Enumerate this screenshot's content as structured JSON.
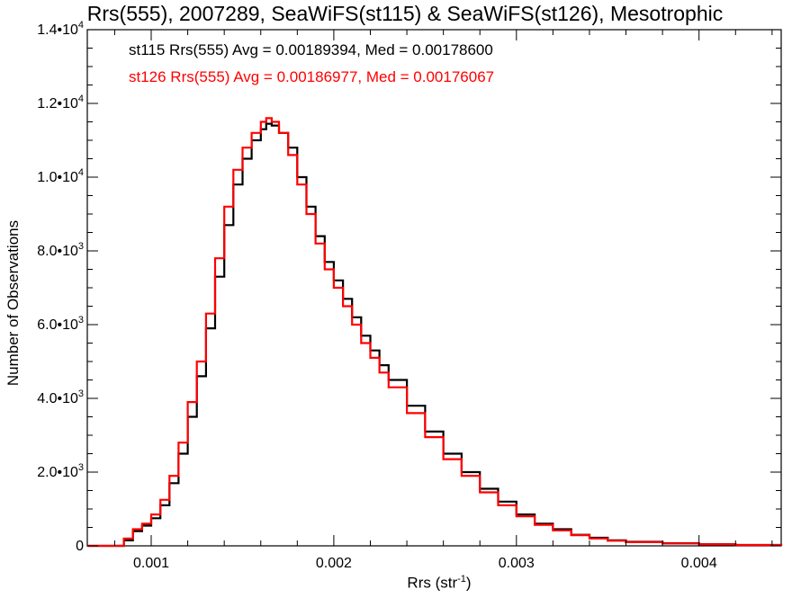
{
  "chart_data": {
    "type": "line",
    "step": true,
    "title": "Rrs(555), 2007289, SeaWiFS(st115) & SeaWiFS(st126), Mesotrophic",
    "xlabel": "Rrs (str",
    "xlabel_exp": "-1",
    "xlabel_close": ")",
    "ylabel": "Number of Observations",
    "xlim": [
      0.00065,
      0.00445
    ],
    "ylim": [
      0,
      14000
    ],
    "x_ticks": [
      {
        "value": 0.001,
        "label": "0.001"
      },
      {
        "value": 0.002,
        "label": "0.002"
      },
      {
        "value": 0.003,
        "label": "0.003"
      },
      {
        "value": 0.004,
        "label": "0.004"
      }
    ],
    "y_ticks": [
      {
        "value": 0,
        "label": "0",
        "exp": ""
      },
      {
        "value": 2000,
        "label": "2.0•10",
        "exp": "3"
      },
      {
        "value": 4000,
        "label": "4.0•10",
        "exp": "3"
      },
      {
        "value": 6000,
        "label": "6.0•10",
        "exp": "3"
      },
      {
        "value": 8000,
        "label": "8.0•10",
        "exp": "3"
      },
      {
        "value": 10000,
        "label": "1.0•10",
        "exp": "4"
      },
      {
        "value": 12000,
        "label": "1.2•10",
        "exp": "4"
      },
      {
        "value": 14000,
        "label": "1.4•10",
        "exp": "4"
      }
    ],
    "legend": [
      {
        "text": "st115 Rrs(555) Avg = 0.00189394, Med = 0.00178600",
        "color": "#000000"
      },
      {
        "text": "st126 Rrs(555) Avg = 0.00186977, Med = 0.00176067",
        "color": "#ff0000"
      }
    ],
    "series": [
      {
        "color": "#000000",
        "x": [
          0.00065,
          0.0008,
          0.00085,
          0.0009,
          0.00095,
          0.001,
          0.00105,
          0.0011,
          0.00115,
          0.0012,
          0.00125,
          0.0013,
          0.00135,
          0.0014,
          0.00145,
          0.0015,
          0.00155,
          0.0016,
          0.00163,
          0.00166,
          0.0017,
          0.00175,
          0.0018,
          0.00185,
          0.0019,
          0.00195,
          0.002,
          0.00205,
          0.0021,
          0.00215,
          0.0022,
          0.00225,
          0.0023,
          0.0024,
          0.0025,
          0.0026,
          0.0027,
          0.0028,
          0.0029,
          0.003,
          0.0031,
          0.0032,
          0.0033,
          0.0034,
          0.0035,
          0.0036,
          0.0038,
          0.004,
          0.0042,
          0.00445
        ],
        "y": [
          0,
          0,
          150,
          400,
          550,
          750,
          1100,
          1700,
          2500,
          3500,
          4600,
          5900,
          7300,
          8700,
          9800,
          10500,
          11000,
          11300,
          11450,
          11400,
          11200,
          10800,
          10000,
          9200,
          8400,
          7700,
          7200,
          6700,
          6200,
          5700,
          5300,
          4900,
          4500,
          3800,
          3100,
          2500,
          2000,
          1550,
          1200,
          850,
          600,
          450,
          300,
          220,
          150,
          110,
          70,
          45,
          25,
          10
        ]
      },
      {
        "color": "#ff0000",
        "x": [
          0.00065,
          0.0008,
          0.00085,
          0.0009,
          0.00095,
          0.001,
          0.00105,
          0.0011,
          0.00115,
          0.0012,
          0.00125,
          0.0013,
          0.00135,
          0.0014,
          0.00145,
          0.0015,
          0.00155,
          0.0016,
          0.00163,
          0.00166,
          0.0017,
          0.00175,
          0.0018,
          0.00185,
          0.0019,
          0.00195,
          0.002,
          0.00205,
          0.0021,
          0.00215,
          0.0022,
          0.00225,
          0.0023,
          0.0024,
          0.0025,
          0.0026,
          0.0027,
          0.0028,
          0.0029,
          0.003,
          0.0031,
          0.0032,
          0.0033,
          0.0034,
          0.0035,
          0.0036,
          0.0038,
          0.004,
          0.0042,
          0.00445
        ],
        "y": [
          0,
          0,
          200,
          450,
          600,
          850,
          1250,
          1900,
          2800,
          3900,
          5000,
          6300,
          7800,
          9200,
          10200,
          10800,
          11200,
          11500,
          11600,
          11500,
          11200,
          10600,
          9800,
          9000,
          8200,
          7500,
          7000,
          6500,
          6000,
          5500,
          5100,
          4700,
          4300,
          3600,
          2950,
          2350,
          1900,
          1450,
          1100,
          800,
          570,
          420,
          290,
          200,
          140,
          100,
          65,
          40,
          22,
          8
        ]
      }
    ]
  }
}
